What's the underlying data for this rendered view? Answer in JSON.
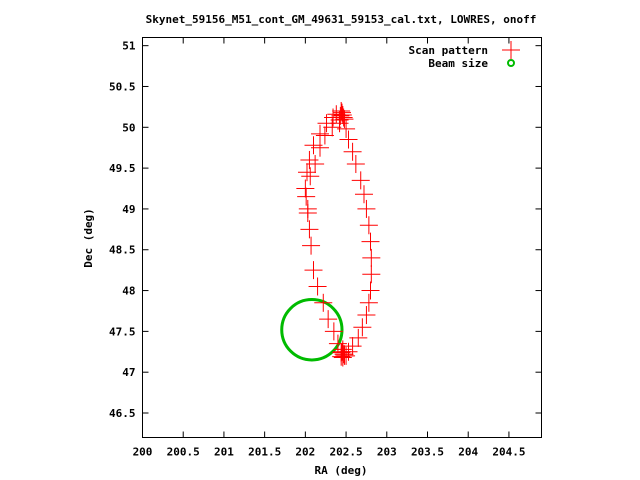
{
  "chart_data": {
    "type": "scatter",
    "title": "Skynet_59156_M51_cont_GM_49631_59153_cal.txt, LOWRES, onoff",
    "xlabel": "RA (deg)",
    "ylabel": "Dec (deg)",
    "xlim": [
      200,
      204.9
    ],
    "ylim": [
      46.2,
      51.1
    ],
    "xticks": [
      "200",
      "200.5",
      "201",
      "201.5",
      "202",
      "202.5",
      "203",
      "203.5",
      "204",
      "204.5"
    ],
    "yticks": [
      "46.5",
      "47",
      "47.5",
      "48",
      "48.5",
      "49",
      "49.5",
      "50",
      "50.5",
      "51"
    ],
    "grid": false,
    "legend_position": "top-right",
    "colors": {
      "scan": "#ff0000",
      "beam": "#00bb00"
    },
    "series": [
      {
        "name": "Scan pattern",
        "marker": "plus",
        "x": [
          202.46,
          202.44,
          202.47,
          202.45,
          202.48,
          202.43,
          202.42,
          202.5,
          202.53,
          202.58,
          202.62,
          202.68,
          202.72,
          202.75,
          202.78,
          202.8,
          202.81,
          202.81,
          202.8,
          202.78,
          202.75,
          202.7,
          202.65,
          202.58,
          202.53,
          202.5,
          202.48,
          202.46,
          202.44,
          202.46,
          202.48,
          202.45,
          202.47,
          202.44,
          202.4,
          202.35,
          202.28,
          202.22,
          202.15,
          202.1,
          202.07,
          202.05,
          202.03,
          202.01,
          202.0,
          202.02,
          202.05,
          202.1,
          202.18,
          202.26,
          202.34,
          202.38,
          202.42,
          202.33,
          202.24,
          202.18,
          202.12,
          202.06,
          202.03
        ],
        "y": [
          50.15,
          50.2,
          50.12,
          50.18,
          50.1,
          50.14,
          50.05,
          49.98,
          49.85,
          49.7,
          49.55,
          49.35,
          49.18,
          49.0,
          48.8,
          48.6,
          48.4,
          48.2,
          48.0,
          47.85,
          47.7,
          47.55,
          47.42,
          47.32,
          47.25,
          47.2,
          47.22,
          47.18,
          47.24,
          47.28,
          47.2,
          47.25,
          47.22,
          47.19,
          47.35,
          47.5,
          47.65,
          47.85,
          48.05,
          48.25,
          48.55,
          48.75,
          49.0,
          49.15,
          49.25,
          49.45,
          49.6,
          49.78,
          49.92,
          50.05,
          50.12,
          50.16,
          50.09,
          50.0,
          49.9,
          49.75,
          49.55,
          49.4,
          48.95
        ]
      },
      {
        "name": "Beam size",
        "marker": "circle",
        "center": [
          202.08,
          47.52
        ],
        "radius_deg": 0.37
      }
    ]
  }
}
